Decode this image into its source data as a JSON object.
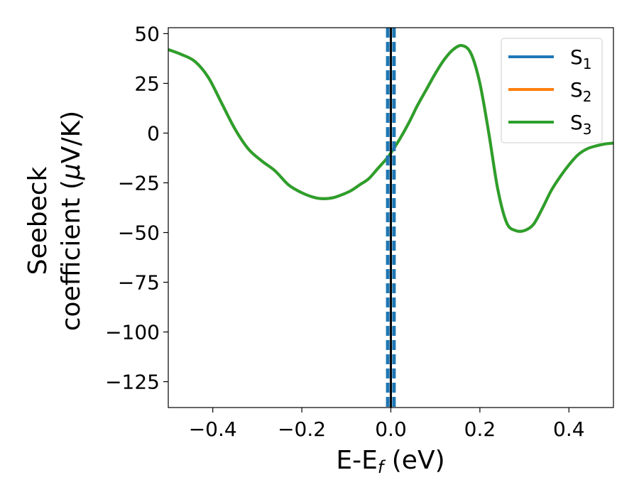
{
  "chart_data": {
    "type": "line",
    "xlabel": {
      "main": "E-E",
      "sub": "f",
      "unit": " (eV)"
    },
    "ylabel": {
      "line1": "Seebeck",
      "line2": "coefficient  (",
      "mu": "μ",
      "unit": "V/K)"
    },
    "xlim": [
      -0.5,
      0.5
    ],
    "ylim": [
      -138,
      53
    ],
    "xticks": [
      -0.4,
      -0.2,
      0.0,
      0.2,
      0.4
    ],
    "xtick_labels": [
      "−0.4",
      "−0.2",
      "0.0",
      "0.2",
      "0.4"
    ],
    "yticks": [
      50,
      25,
      0,
      -25,
      -50,
      -75,
      -100,
      -125
    ],
    "ytick_labels": [
      "50",
      "25",
      "0",
      "−25",
      "−50",
      "−75",
      "−100",
      "−125"
    ],
    "grid": false,
    "legend_position": "top-right",
    "reference_lines": {
      "solid_x": 0.0,
      "dashed_x": [
        -0.007,
        0.007
      ]
    },
    "series": [
      {
        "name": "S",
        "sub": "1",
        "color": "#1f77b4",
        "hidden_behind": true
      },
      {
        "name": "S",
        "sub": "2",
        "color": "#ff7f0e",
        "hidden_behind": true
      },
      {
        "name": "S",
        "sub": "3",
        "color": "#2ca02c"
      }
    ],
    "curve": {
      "x": [
        -0.5,
        -0.47,
        -0.44,
        -0.41,
        -0.38,
        -0.35,
        -0.32,
        -0.29,
        -0.26,
        -0.23,
        -0.2,
        -0.17,
        -0.15,
        -0.13,
        -0.11,
        -0.09,
        -0.07,
        -0.05,
        -0.03,
        -0.01,
        0.0,
        0.02,
        0.04,
        0.06,
        0.08,
        0.1,
        0.12,
        0.14,
        0.16,
        0.18,
        0.2,
        0.22,
        0.24,
        0.26,
        0.28,
        0.3,
        0.32,
        0.34,
        0.36,
        0.38,
        0.4,
        0.42,
        0.44,
        0.46,
        0.48,
        0.5
      ],
      "y": [
        42,
        39.5,
        36,
        28,
        15,
        2,
        -8,
        -14,
        -19,
        -26,
        -30,
        -32.5,
        -33,
        -32.5,
        -31,
        -29,
        -26,
        -23,
        -18,
        -13,
        -10,
        -3,
        5,
        14,
        22,
        30,
        37,
        42,
        44,
        40,
        25,
        0,
        -28,
        -45,
        -49,
        -49,
        -46,
        -38,
        -29,
        -22,
        -16,
        -11,
        -8,
        -6.5,
        -5.5,
        -5
      ]
    }
  }
}
